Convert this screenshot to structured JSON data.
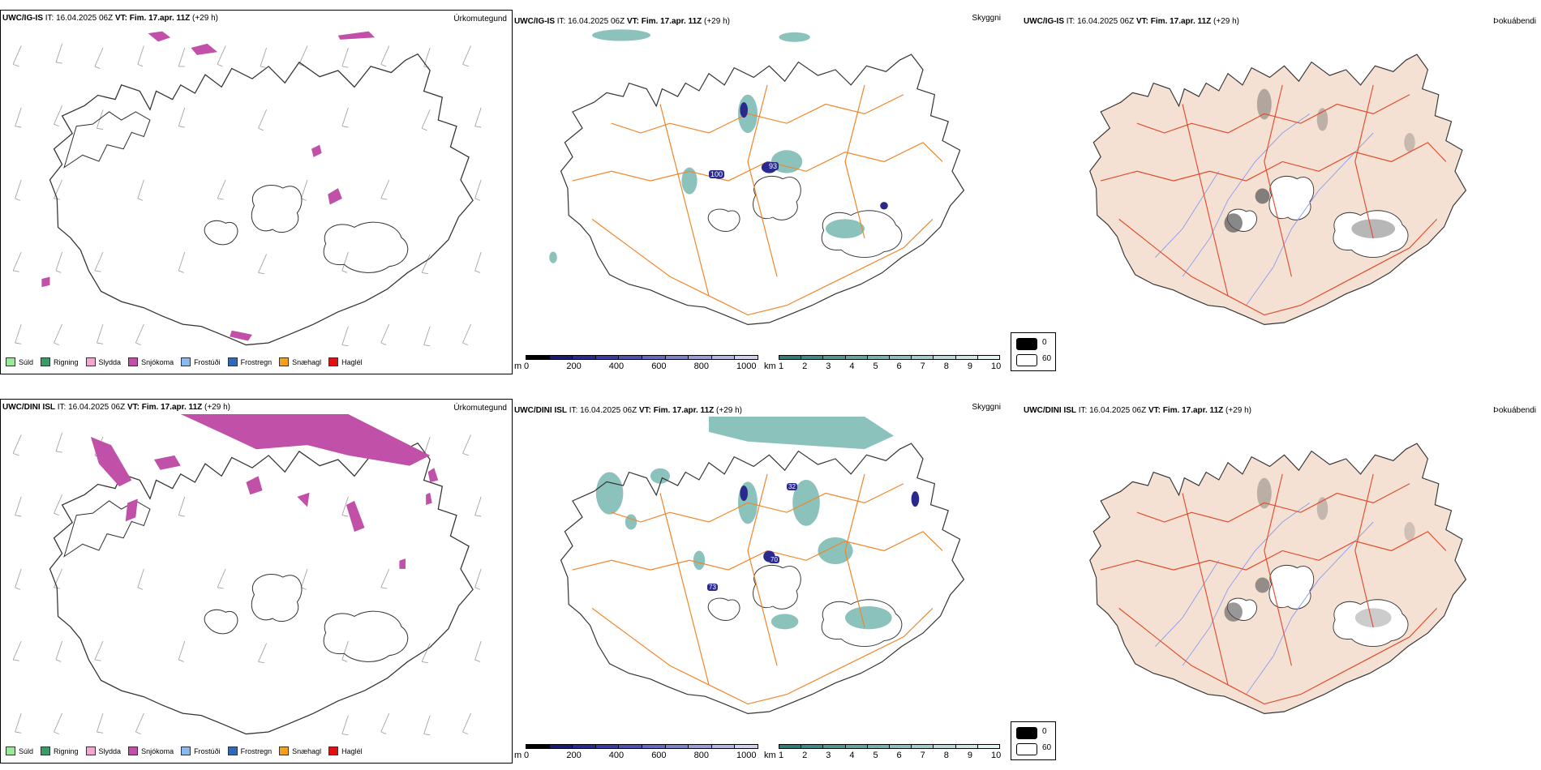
{
  "rows": [
    {
      "model": "UWC/IG-IS",
      "it_label": "IT:",
      "it_value": "16.04.2025 06Z",
      "vt_label": "VT:",
      "vt_value": "Fim. 17.apr. 11Z",
      "lead": "(+29 h)",
      "precip_field": "Úrkomutegund",
      "vis_field": "Skyggni",
      "fog_field": "Þokuábendi"
    },
    {
      "model": "UWC/DINI ISL",
      "it_label": "IT:",
      "it_value": "16.04.2025 06Z",
      "vt_label": "VT:",
      "vt_value": "Fim. 17.apr. 11Z",
      "lead": "(+29 h)",
      "precip_field": "Úrkomutegund",
      "vis_field": "Skyggni",
      "fog_field": "Þokuábendi"
    }
  ],
  "precip_legend": [
    {
      "label": "Súld",
      "color": "#9be89b"
    },
    {
      "label": "Rigning",
      "color": "#3c9a6a"
    },
    {
      "label": "Slydda",
      "color": "#f4a6d0"
    },
    {
      "label": "Snjókoma",
      "color": "#c050a8"
    },
    {
      "label": "Frostúði",
      "color": "#8cb8ee"
    },
    {
      "label": "Frostregn",
      "color": "#2f6ab8"
    },
    {
      "label": "Snæhagl",
      "color": "#f4a020"
    },
    {
      "label": "Haglél",
      "color": "#e01010"
    }
  ],
  "vis_scale_m": {
    "unit": "m",
    "ticks": [
      "0",
      "200",
      "400",
      "600",
      "800",
      "1000"
    ],
    "colors": [
      "#000000",
      "#1a1a6e",
      "#2a2a8e",
      "#3a3aa0",
      "#5050b0",
      "#6868c0",
      "#8282cc",
      "#9c9cd8",
      "#b6b6e2",
      "#d0d0ee"
    ]
  },
  "vis_scale_km": {
    "unit": "km",
    "ticks": [
      "1",
      "2",
      "3",
      "4",
      "5",
      "6",
      "7",
      "8",
      "9",
      "10"
    ],
    "colors": [
      "#2e7d78",
      "#3f8a85",
      "#529792",
      "#66a4a0",
      "#7ab2ae",
      "#8fbfbc",
      "#a4ccca",
      "#bad9d8",
      "#d0e6e5",
      "#e6f2f2"
    ]
  },
  "fog_legend": {
    "low": "0",
    "high": "60"
  },
  "colors": {
    "snow": "#c050a8",
    "road": "#f0862a",
    "road_red": "#e04a2a",
    "land_tan": "#f5e1d3",
    "river": "#8a9ef0",
    "vis_teal": "#6fb3ab",
    "vis_blue": "#2a2a8e"
  },
  "map_labels": {
    "top": [
      "100",
      "93"
    ],
    "bottom": [
      "32",
      "70",
      "73"
    ]
  }
}
